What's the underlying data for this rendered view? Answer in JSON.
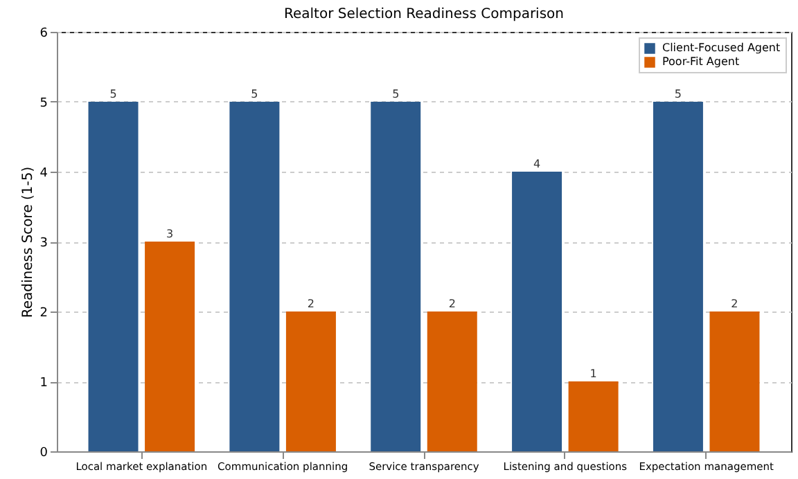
{
  "chart_data": {
    "type": "bar",
    "title": "Realtor Selection Readiness Comparison",
    "ylabel": "Readiness Score (1-5)",
    "categories": [
      "Local market explanation",
      "Communication planning",
      "Service transparency",
      "Listening and questions",
      "Expectation management"
    ],
    "series": [
      {
        "name": "Client-Focused Agent",
        "color": "#2c5a8c",
        "values": [
          5,
          5,
          5,
          4,
          5
        ]
      },
      {
        "name": "Poor-Fit Agent",
        "color": "#d95f02",
        "values": [
          3,
          2,
          2,
          1,
          2
        ]
      }
    ],
    "ylim": [
      0,
      6
    ],
    "yticks": [
      0,
      1,
      2,
      3,
      4,
      5,
      6
    ],
    "grid": "y",
    "legend": "top right",
    "data_labels": true
  }
}
